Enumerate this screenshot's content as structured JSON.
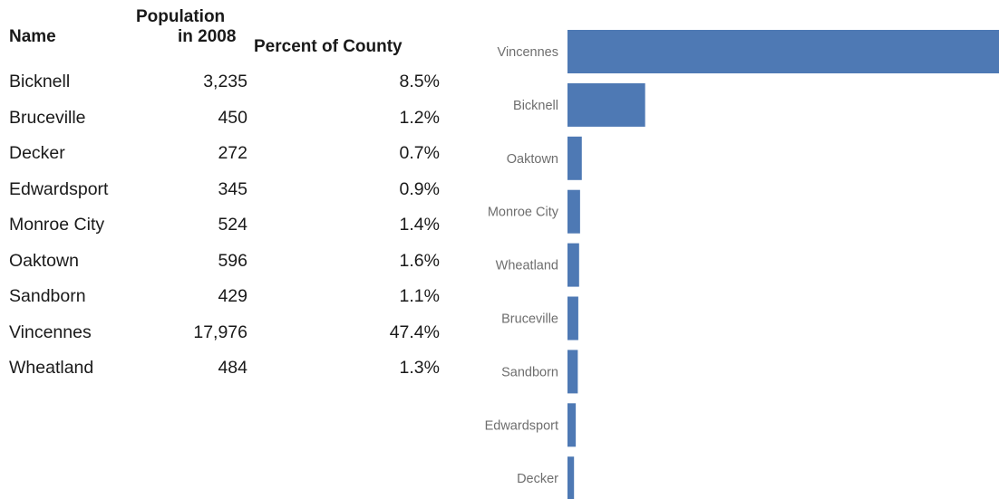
{
  "table": {
    "headers": {
      "name": "Name",
      "population_line1": "Population",
      "population_line2": "in 2008",
      "percent": "Percent of County"
    },
    "rows": [
      {
        "name": "Bicknell",
        "population": "3,235",
        "percent": "8.5%"
      },
      {
        "name": "Bruceville",
        "population": "450",
        "percent": "1.2%"
      },
      {
        "name": "Decker",
        "population": "272",
        "percent": "0.7%"
      },
      {
        "name": "Edwardsport",
        "population": "345",
        "percent": "0.9%"
      },
      {
        "name": "Monroe City",
        "population": "524",
        "percent": "1.4%"
      },
      {
        "name": "Oaktown",
        "population": "596",
        "percent": "1.6%"
      },
      {
        "name": "Sandborn",
        "population": "429",
        "percent": "1.1%"
      },
      {
        "name": "Vincennes",
        "population": "17,976",
        "percent": "47.4%"
      },
      {
        "name": "Wheatland",
        "population": "484",
        "percent": "1.3%"
      }
    ]
  },
  "chart_data": {
    "type": "bar",
    "orientation": "horizontal",
    "categories": [
      "Vincennes",
      "Bicknell",
      "Oaktown",
      "Monroe City",
      "Wheatland",
      "Bruceville",
      "Sandborn",
      "Edwardsport",
      "Decker"
    ],
    "values": [
      17976,
      3235,
      596,
      524,
      484,
      450,
      429,
      345,
      272
    ],
    "title": "",
    "xlabel": "",
    "ylabel": "",
    "bar_color": "#4e79b4",
    "grid": false,
    "legend": "none"
  }
}
